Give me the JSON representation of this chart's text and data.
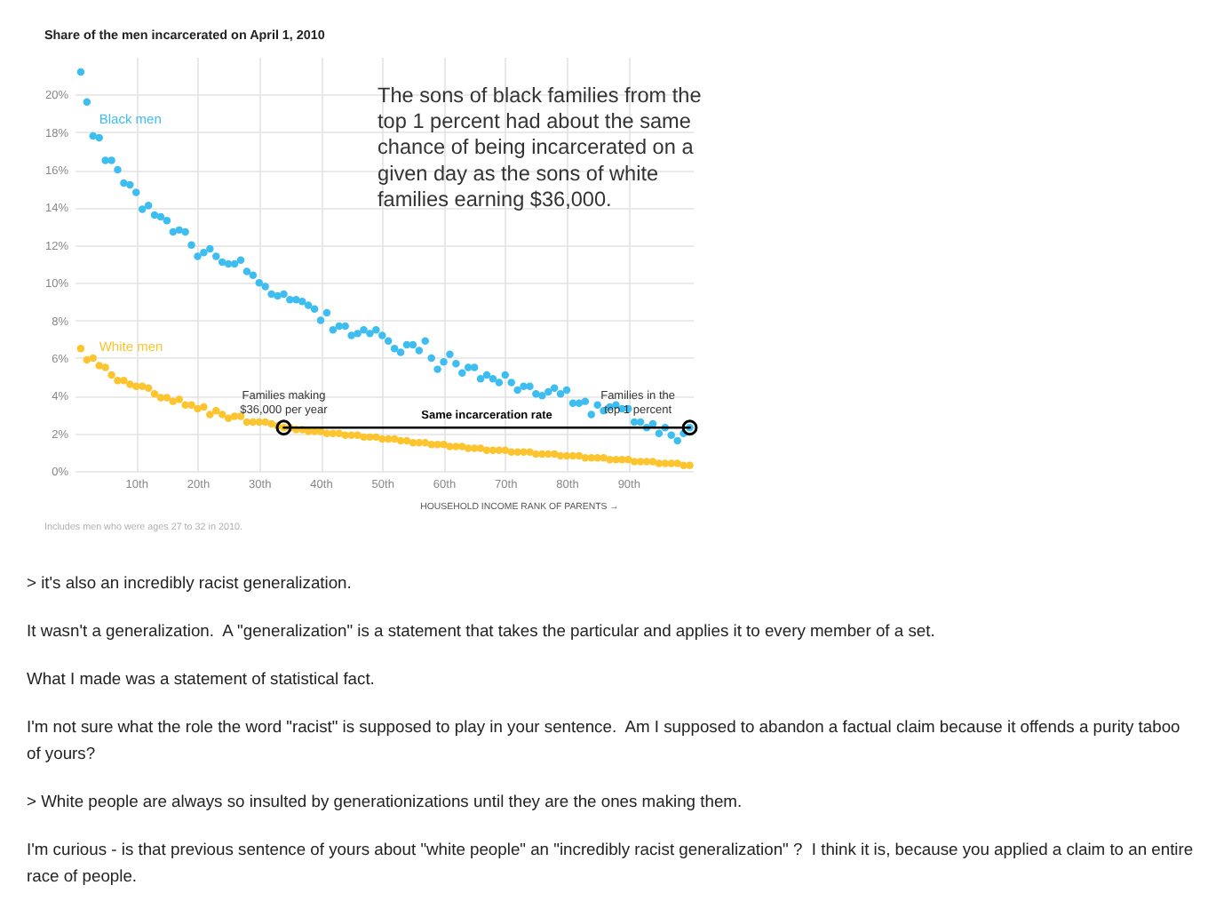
{
  "chart_data": {
    "type": "scatter",
    "title": "Share of the men incarcerated on April 1, 2010",
    "xlabel": "HOUSEHOLD INCOME RANK OF PARENTS →",
    "x": [
      1,
      2,
      3,
      4,
      5,
      6,
      7,
      8,
      9,
      10,
      11,
      12,
      13,
      14,
      15,
      16,
      17,
      18,
      19,
      20,
      21,
      22,
      23,
      24,
      25,
      26,
      27,
      28,
      29,
      30,
      31,
      32,
      33,
      34,
      35,
      36,
      37,
      38,
      39,
      40,
      41,
      42,
      43,
      44,
      45,
      46,
      47,
      48,
      49,
      50,
      51,
      52,
      53,
      54,
      55,
      56,
      57,
      58,
      59,
      60,
      61,
      62,
      63,
      64,
      65,
      66,
      67,
      68,
      69,
      70,
      71,
      72,
      73,
      74,
      75,
      76,
      77,
      78,
      79,
      80,
      81,
      82,
      83,
      84,
      85,
      86,
      87,
      88,
      89,
      90,
      91,
      92,
      93,
      94,
      95,
      96,
      97,
      98,
      99,
      100
    ],
    "xlim": [
      0,
      100.5
    ],
    "xticks": [
      {
        "value": 10,
        "label": "10th"
      },
      {
        "value": 20,
        "label": "20th"
      },
      {
        "value": 30,
        "label": "30th"
      },
      {
        "value": 40,
        "label": "40th"
      },
      {
        "value": 50,
        "label": "50th"
      },
      {
        "value": 60,
        "label": "60th"
      },
      {
        "value": 70,
        "label": "70th"
      },
      {
        "value": 80,
        "label": "80th"
      },
      {
        "value": 90,
        "label": "90th"
      }
    ],
    "ylim": [
      0,
      22
    ],
    "yticks": [
      {
        "value": 0,
        "label": "0%"
      },
      {
        "value": 2,
        "label": "2%"
      },
      {
        "value": 4,
        "label": "4%"
      },
      {
        "value": 6,
        "label": "6%"
      },
      {
        "value": 8,
        "label": "8%"
      },
      {
        "value": 10,
        "label": "10%"
      },
      {
        "value": 12,
        "label": "12%"
      },
      {
        "value": 14,
        "label": "14%"
      },
      {
        "value": 16,
        "label": "16%"
      },
      {
        "value": 18,
        "label": "18%"
      },
      {
        "value": 20,
        "label": "20%"
      }
    ],
    "grid": true,
    "legend": false,
    "marker": "circle",
    "series": [
      {
        "name": "Black men",
        "color": "#3ebdf0",
        "values": [
          21.2,
          19.6,
          17.8,
          17.7,
          16.5,
          16.5,
          16.0,
          15.3,
          15.2,
          14.8,
          13.9,
          14.1,
          13.6,
          13.5,
          13.3,
          12.7,
          12.8,
          12.7,
          12.0,
          11.4,
          11.6,
          11.8,
          11.4,
          11.1,
          11.0,
          11.0,
          11.2,
          10.6,
          10.4,
          10.0,
          9.8,
          9.4,
          9.3,
          9.4,
          9.1,
          9.1,
          9.0,
          8.8,
          8.6,
          8.0,
          8.4,
          7.5,
          7.7,
          7.7,
          7.2,
          7.3,
          7.5,
          7.3,
          7.5,
          7.2,
          6.9,
          6.5,
          6.3,
          6.7,
          6.7,
          6.4,
          6.9,
          6.0,
          5.4,
          5.8,
          6.2,
          5.7,
          5.2,
          5.5,
          5.5,
          4.9,
          5.1,
          4.9,
          4.7,
          5.1,
          4.7,
          4.3,
          4.5,
          4.5,
          4.1,
          4.0,
          4.2,
          4.4,
          4.1,
          4.3,
          3.6,
          3.6,
          3.7,
          3.0,
          3.5,
          3.2,
          3.4,
          3.5,
          3.3,
          3.3,
          2.6,
          2.6,
          2.3,
          2.5,
          2.0,
          2.3,
          1.9,
          1.6,
          2.0,
          2.3
        ]
      },
      {
        "name": "White men",
        "color": "#fcc42f",
        "values": [
          6.5,
          5.9,
          6.0,
          5.6,
          5.5,
          5.1,
          4.8,
          4.8,
          4.6,
          4.5,
          4.5,
          4.4,
          4.1,
          3.9,
          3.9,
          3.7,
          3.8,
          3.5,
          3.5,
          3.3,
          3.4,
          3.0,
          3.2,
          3.0,
          2.8,
          2.9,
          2.9,
          2.6,
          2.6,
          2.6,
          2.6,
          2.5,
          2.4,
          2.3,
          2.3,
          2.2,
          2.2,
          2.1,
          2.1,
          2.1,
          2.0,
          2.0,
          2.0,
          1.9,
          1.9,
          1.9,
          1.8,
          1.8,
          1.8,
          1.7,
          1.7,
          1.7,
          1.6,
          1.6,
          1.5,
          1.5,
          1.5,
          1.4,
          1.4,
          1.4,
          1.3,
          1.3,
          1.3,
          1.2,
          1.2,
          1.2,
          1.1,
          1.1,
          1.1,
          1.1,
          1.0,
          1.0,
          1.0,
          1.0,
          0.9,
          0.9,
          0.9,
          0.9,
          0.8,
          0.8,
          0.8,
          0.8,
          0.7,
          0.7,
          0.7,
          0.7,
          0.6,
          0.6,
          0.6,
          0.6,
          0.5,
          0.5,
          0.5,
          0.5,
          0.4,
          0.4,
          0.4,
          0.4,
          0.3,
          0.3
        ]
      },
      {
        "name": "Same incarceration rate",
        "type": "line",
        "color": "#000000",
        "x": [
          34,
          100
        ],
        "values": [
          2.3,
          2.3
        ]
      }
    ],
    "annotations": [
      "The sons of black families from the top 1 percent had about the same chance of being incarcerated on a given day as the sons of white families earning $36,000.",
      {
        "text": "Families making $36,000 per year",
        "x": 34,
        "y": 2.3
      },
      {
        "text": "Families in the top 1 percent",
        "x": 100,
        "y": 2.3
      },
      "Includes men who were ages 27 to 32 in 2010.",
      "> it's also an incredibly racist generalization.",
      "It wasn't a generalization.  A \"generalization\" is a statement that takes the particular and applies it to every member of a set.",
      "What I made was a statement of statistical fact.",
      "I'm not sure what the role the word \"racist\" is supposed to play in your sentence.  Am I supposed to abandon a factual claim because it offends a purity taboo of yours?",
      "> White people are always so insulted by generationizations until they are the ones making them.",
      "I'm curious - is that previous sentence of yours about \"white people\" an \"incredibly racist generalization\" ?  I think it is, because you applied a claim to an entire race of people."
    ]
  }
}
